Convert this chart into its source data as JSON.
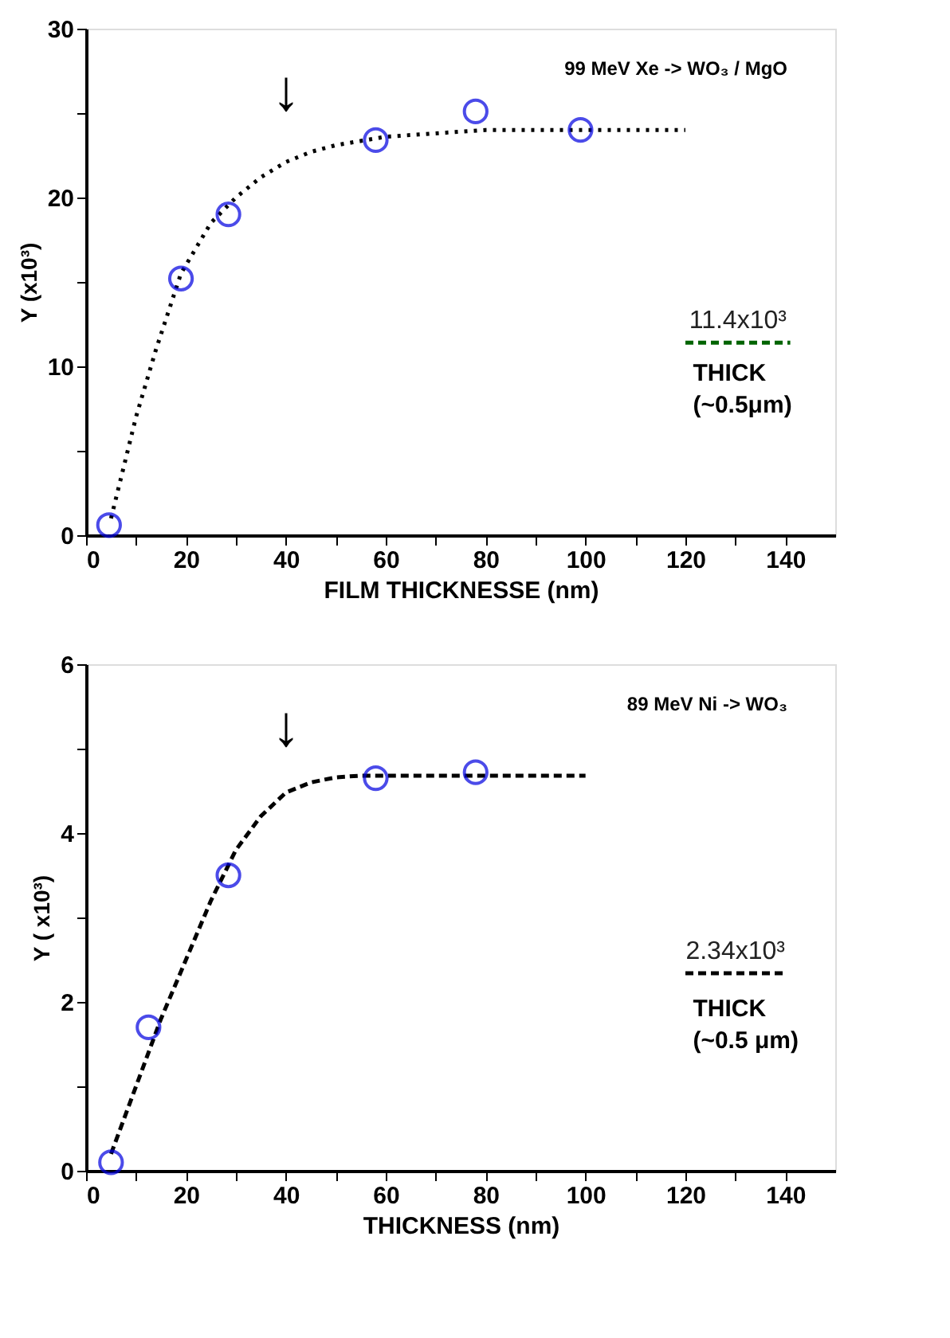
{
  "chart_data": [
    {
      "type": "scatter",
      "xlabel": "FILM  THICKNESSE  (nm)",
      "ylabel": "Y  (x10³)",
      "xlim": [
        0,
        150
      ],
      "ylim": [
        0,
        30
      ],
      "xticks": [
        0,
        {
          "value": 10,
          "label": null
        },
        20,
        {
          "value": 30,
          "label": null
        },
        40,
        {
          "value": 50,
          "label": null
        },
        60,
        {
          "value": 70,
          "label": null
        },
        80,
        {
          "value": 90,
          "label": null
        },
        100,
        {
          "value": 110,
          "label": null
        },
        120,
        {
          "value": 130,
          "label": null
        },
        140
      ],
      "yticks": [
        0,
        {
          "value": 5,
          "label": null
        },
        10,
        {
          "value": 15,
          "label": null
        },
        20,
        {
          "value": 25,
          "label": null
        },
        30
      ],
      "grid": false,
      "series": [
        {
          "color": "#0000e0",
          "marker": "circle",
          "x": [
            4.6,
            19,
            28.5,
            58,
            78,
            99
          ],
          "values": [
            0.6,
            15.2,
            19,
            23.4,
            25.1,
            24
          ]
        },
        {
          "type": "line",
          "color": "#000000",
          "marker": "none",
          "line_style": "dotted",
          "x": [
            5,
            10,
            14,
            19,
            25,
            30,
            35,
            40,
            45,
            50,
            60,
            70,
            80,
            100,
            120
          ],
          "values": [
            1,
            7,
            11,
            15.5,
            18.5,
            20,
            21.2,
            22.1,
            22.7,
            23.1,
            23.6,
            23.8,
            24,
            24,
            24
          ]
        },
        {
          "type": "line",
          "name": "11.4x10³",
          "color": "#006400",
          "marker": "none",
          "line_style": "dashed",
          "x": [
            120,
            141
          ],
          "values": [
            11.4,
            11.4
          ]
        }
      ],
      "annotations": [
        "99 MeV Xe -> WO₃ / MgO",
        "↓",
        "THICK",
        "(~0.5μm)"
      ]
    },
    {
      "type": "scatter",
      "xlabel": "THICKNESS  (nm)",
      "ylabel": "Y  ( x10³)",
      "xlim": [
        0,
        150
      ],
      "ylim": [
        0,
        6
      ],
      "xticks": [
        0,
        {
          "value": 10,
          "label": null
        },
        20,
        {
          "value": 30,
          "label": null
        },
        40,
        {
          "value": 50,
          "label": null
        },
        60,
        {
          "value": 70,
          "label": null
        },
        80,
        {
          "value": 90,
          "label": null
        },
        100,
        {
          "value": 110,
          "label": null
        },
        120,
        {
          "value": 130,
          "label": null
        },
        140
      ],
      "yticks": [
        0,
        {
          "value": 1,
          "label": null
        },
        2,
        {
          "value": 3,
          "label": null
        },
        4,
        {
          "value": 5,
          "label": null
        },
        6
      ],
      "grid": false,
      "series": [
        {
          "color": "#0000e0",
          "marker": "circle",
          "x": [
            5,
            12.5,
            28.5,
            58,
            78
          ],
          "values": [
            0.1,
            1.7,
            3.5,
            4.65,
            4.72
          ]
        },
        {
          "type": "line",
          "color": "#000000",
          "marker": "none",
          "line_style": "dashed",
          "x": [
            5,
            10,
            15,
            20,
            25,
            30,
            35,
            40,
            45,
            50,
            55,
            100
          ],
          "values": [
            0.2,
            1.0,
            1.8,
            2.5,
            3.2,
            3.8,
            4.2,
            4.48,
            4.6,
            4.66,
            4.68,
            4.68
          ]
        },
        {
          "type": "line",
          "name": "2.34x10³",
          "color": "#000000",
          "marker": "none",
          "line_style": "dashed",
          "x": [
            120,
            140
          ],
          "values": [
            2.34,
            2.34
          ]
        }
      ],
      "annotations": [
        "89 MeV Ni -> WO₃",
        "↓",
        "THICK",
        "(~0.5 μm)"
      ]
    }
  ]
}
